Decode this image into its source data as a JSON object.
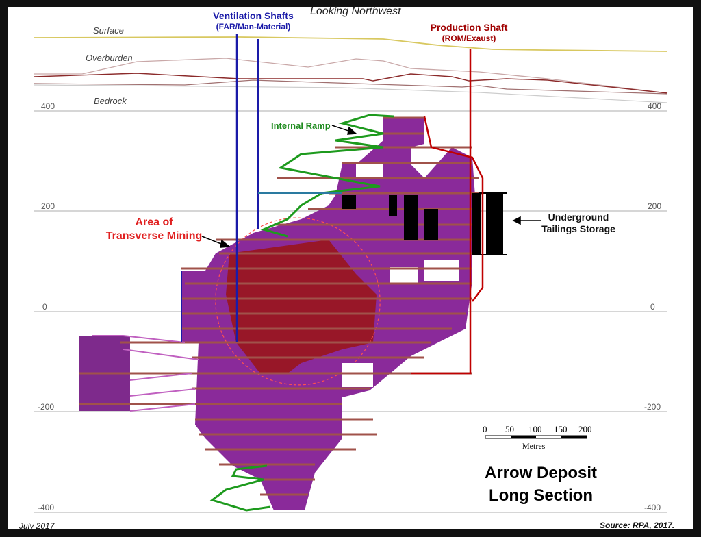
{
  "header": {
    "view_direction": "Looking Northwest"
  },
  "layers": {
    "surface": "Surface",
    "overburden": "Overburden",
    "bedrock": "Bedrock"
  },
  "shafts": {
    "ventilation": {
      "title": "Ventilation Shafts",
      "subtitle": "(FAR/Man-Material)",
      "color": "#1a1aa8"
    },
    "production": {
      "title": "Production Shaft",
      "subtitle": "(ROM/Exaust)",
      "color": "#b00000"
    }
  },
  "labels": {
    "internal_ramp": "Internal Ramp",
    "transverse_mining_line1": "Area of",
    "transverse_mining_line2": "Transverse Mining",
    "tailings_line1": "Underground",
    "tailings_line2": "Tailings Storage"
  },
  "elevations": [
    "400",
    "200",
    "0",
    "-200",
    "-400"
  ],
  "scale_bar": {
    "ticks": [
      "0",
      "50",
      "100",
      "150",
      "200"
    ],
    "unit": "Metres"
  },
  "title": {
    "line1": "Arrow Deposit",
    "line2": "Long Section"
  },
  "footer": {
    "date": "July 2017",
    "source": "Source: RPA, 2017."
  },
  "colors": {
    "orebody": "#8a1f9a",
    "high_grade": "#9a1010",
    "ramp": "#1d9a1d",
    "surface": "#d8c860",
    "tailings": "#000000"
  }
}
